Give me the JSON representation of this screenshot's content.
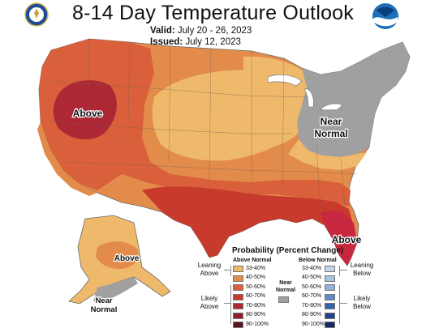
{
  "header": {
    "title": "8-14 Day Temperature Outlook",
    "valid_label": "Valid:",
    "valid_value": "July 20 - 26, 2023",
    "issued_label": "Issued:",
    "issued_value": "July 12, 2023"
  },
  "logos": {
    "left": "commerce-seal-icon",
    "right": "noaa-logo-icon"
  },
  "map_labels": {
    "west": "Above",
    "northeast": "Near Normal",
    "florida": "Above",
    "alaska_north": "Above",
    "alaska_south": "Near Normal"
  },
  "legend": {
    "title": "Probability (Percent Change)",
    "above_header": "Above Normal",
    "below_header": "Below Normal",
    "near_header": "Near Normal",
    "leaning_above": "Leaning Above",
    "likely_above": "Likely Above",
    "leaning_below": "Leaning Below",
    "likely_below": "Likely Below",
    "above": [
      {
        "label": "33-40%",
        "color": "#eeb96a"
      },
      {
        "label": "40-50%",
        "color": "#e38b4a"
      },
      {
        "label": "50-60%",
        "color": "#d9603a"
      },
      {
        "label": "60-70%",
        "color": "#c73a2c"
      },
      {
        "label": "70-80%",
        "color": "#ad2734"
      },
      {
        "label": "80-90%",
        "color": "#8a1f2e"
      },
      {
        "label": "90-100%",
        "color": "#5b1220"
      }
    ],
    "below": [
      {
        "label": "33-40%",
        "color": "#c3d4eb"
      },
      {
        "label": "40-50%",
        "color": "#a8c3e2"
      },
      {
        "label": "50-60%",
        "color": "#8fb2da"
      },
      {
        "label": "60-70%",
        "color": "#5d8cc9"
      },
      {
        "label": "70-80%",
        "color": "#2f64ae"
      },
      {
        "label": "80-90%",
        "color": "#1f4290"
      },
      {
        "label": "90-100%",
        "color": "#142c63"
      }
    ],
    "near_color": "#a0a0a0"
  }
}
